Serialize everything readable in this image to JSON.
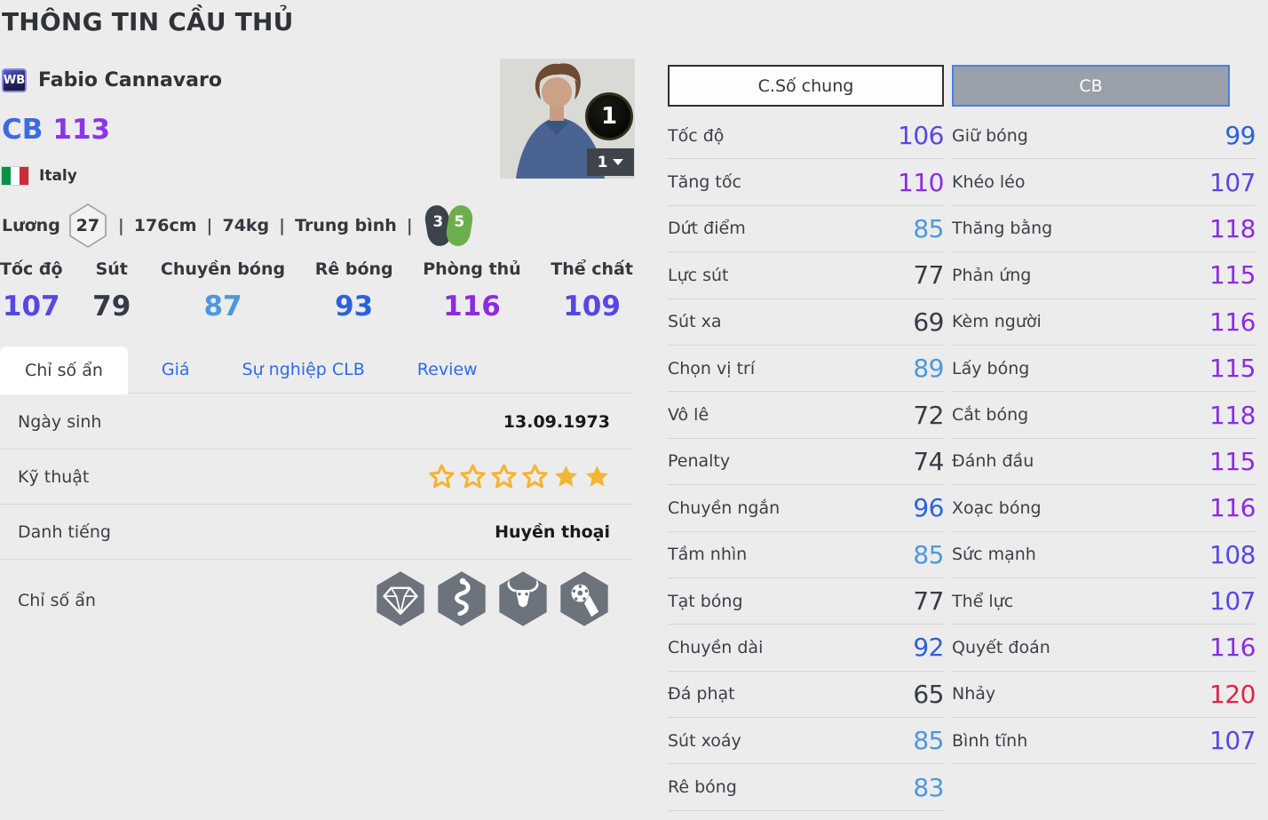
{
  "page": {
    "title": "THÔNG TIN CẦU THỦ"
  },
  "player": {
    "badge": "WB",
    "name": "Fabio Cannavaro",
    "position": "CB",
    "ovr": "113",
    "nation": "Italy",
    "card_count": "1",
    "card_selected": "1"
  },
  "meta": {
    "salary_label": "Lương",
    "salary": "27",
    "separator": "|",
    "height": "176cm",
    "weight": "74kg",
    "body_type": "Trung bình",
    "weak_foot": "3",
    "strong_foot": "5"
  },
  "main_stats": [
    {
      "key": "toc-do",
      "label": "Tốc độ",
      "value": 107
    },
    {
      "key": "sut",
      "label": "Sút",
      "value": 79
    },
    {
      "key": "chuyen-bong",
      "label": "Chuyền bóng",
      "value": 87
    },
    {
      "key": "re-bong",
      "label": "Rê bóng",
      "value": 93
    },
    {
      "key": "phong-thu",
      "label": "Phòng thủ",
      "value": 116
    },
    {
      "key": "the-chat",
      "label": "Thể chất",
      "value": 109
    }
  ],
  "tabs": [
    {
      "key": "chi-so-an",
      "label": "Chỉ số ẩn",
      "active": true
    },
    {
      "key": "gia",
      "label": "Giá",
      "active": false
    },
    {
      "key": "su-nghiep-clb",
      "label": "Sự nghiệp CLB",
      "active": false
    },
    {
      "key": "review",
      "label": "Review",
      "active": false
    }
  ],
  "info_rows": {
    "birth": {
      "label": "Ngày sinh",
      "value": "13.09.1973"
    },
    "skill": {
      "label": "Kỹ thuật",
      "stars": [
        "empty",
        "empty",
        "empty",
        "empty",
        "filled",
        "filled"
      ]
    },
    "fame": {
      "label": "Danh tiếng",
      "value": "Huyền thoại"
    },
    "hidden": {
      "label": "Chỉ số ẩn",
      "icons": [
        "diamond",
        "snake",
        "buffalo",
        "ball-in-hand"
      ]
    }
  },
  "panel": {
    "tab_general": "C.Số chung",
    "tab_position": "CB",
    "general_stats": [
      {
        "label": "Tốc độ",
        "value": 106
      },
      {
        "label": "Tăng tốc",
        "value": 110
      },
      {
        "label": "Dứt điểm",
        "value": 85
      },
      {
        "label": "Lực sút",
        "value": 77
      },
      {
        "label": "Sút xa",
        "value": 69
      },
      {
        "label": "Chọn vị trí",
        "value": 89
      },
      {
        "label": "Vô lê",
        "value": 72
      },
      {
        "label": "Penalty",
        "value": 74
      },
      {
        "label": "Chuyền ngắn",
        "value": 96
      },
      {
        "label": "Tầm nhìn",
        "value": 85
      },
      {
        "label": "Tạt bóng",
        "value": 77
      },
      {
        "label": "Chuyền dài",
        "value": 92
      },
      {
        "label": "Đá phạt",
        "value": 65
      },
      {
        "label": "Sút xoáy",
        "value": 85
      },
      {
        "label": "Rê bóng",
        "value": 83
      }
    ],
    "position_stats": [
      {
        "label": "Giữ bóng",
        "value": 99
      },
      {
        "label": "Khéo léo",
        "value": 107
      },
      {
        "label": "Thăng bằng",
        "value": 118
      },
      {
        "label": "Phản ứng",
        "value": 115
      },
      {
        "label": "Kèm người",
        "value": 116
      },
      {
        "label": "Lấy bóng",
        "value": 115
      },
      {
        "label": "Cắt bóng",
        "value": 118
      },
      {
        "label": "Đánh đầu",
        "value": 115
      },
      {
        "label": "Xoạc bóng",
        "value": 116
      },
      {
        "label": "Sức mạnh",
        "value": 108
      },
      {
        "label": "Thể lực",
        "value": 107
      },
      {
        "label": "Quyết đoán",
        "value": 116
      },
      {
        "label": "Nhảy",
        "value": 120
      },
      {
        "label": "Bình tĩnh",
        "value": 107
      }
    ]
  },
  "colors": {
    "value_low": "#353b46",
    "value_80": "#4f97dd",
    "value_90": "#2b62d9",
    "value_100": "#5847e4",
    "value_110": "#8c2be2",
    "value_120": "#e2224a",
    "tab_blue": "#2e6be4",
    "position_blue": "#3b6ce4",
    "ovr_purple": "#8a35ea",
    "star_gold": "#f2b535",
    "flag_green": "#009246",
    "flag_white": "#ffffff",
    "flag_red": "#ce2b37",
    "hexicon_gray": "#6d737d"
  }
}
